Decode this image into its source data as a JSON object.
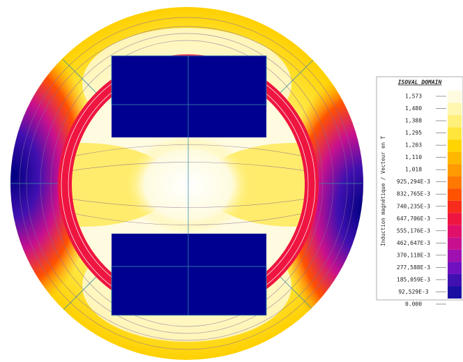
{
  "legend": {
    "title": "ISOVAL_DOMAIN",
    "axis_label": "Induction magnétique / Vecteur en T",
    "levels": [
      {
        "label": "1,573",
        "color": "#fffbe0"
      },
      {
        "label": "1,480",
        "color": "#fff6b0"
      },
      {
        "label": "1,388",
        "color": "#fff07a"
      },
      {
        "label": "1,295",
        "color": "#ffe53c"
      },
      {
        "label": "1,203",
        "color": "#ffd400"
      },
      {
        "label": "1,110",
        "color": "#ffb800"
      },
      {
        "label": "1,018",
        "color": "#ff9a00"
      },
      {
        "label": "925,294E-3",
        "color": "#ff7800"
      },
      {
        "label": "832,765E-3",
        "color": "#ff5200"
      },
      {
        "label": "740,235E-3",
        "color": "#f82c1c"
      },
      {
        "label": "647,706E-3",
        "color": "#ee1540"
      },
      {
        "label": "555,176E-3",
        "color": "#e0106a"
      },
      {
        "label": "462,647E-3",
        "color": "#c8108e"
      },
      {
        "label": "370,118E-3",
        "color": "#a010b0"
      },
      {
        "label": "277,588E-3",
        "color": "#7010c0"
      },
      {
        "label": "185,059E-3",
        "color": "#4010b0"
      },
      {
        "label": "92,529E-3",
        "color": "#1a0fa0"
      },
      {
        "label": "0.000",
        "color": "#000080"
      }
    ]
  }
}
